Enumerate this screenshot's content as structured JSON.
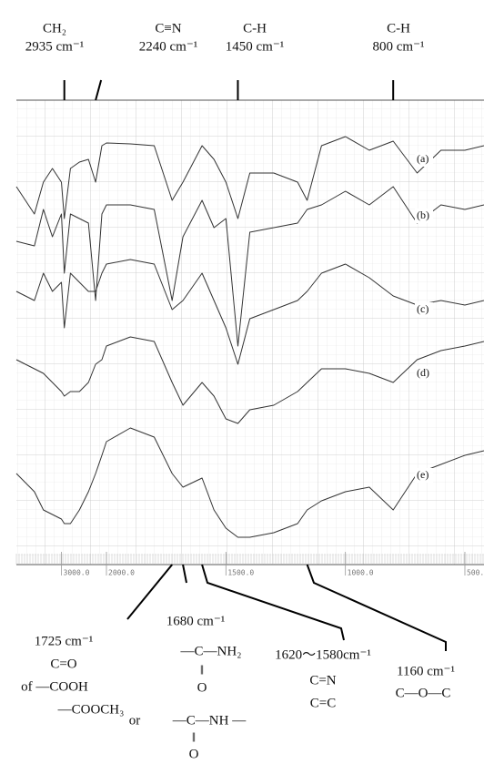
{
  "chart_data": {
    "type": "line",
    "x": [
      4000,
      3600,
      3400,
      3200,
      3000,
      2935,
      2800,
      2600,
      2400,
      2240,
      2100,
      2000,
      1900,
      1800,
      1725,
      1680,
      1600,
      1550,
      1500,
      1450,
      1400,
      1300,
      1200,
      1160,
      1100,
      1000,
      900,
      800,
      700,
      600,
      500,
      420
    ],
    "xlim": [
      4000,
      420
    ],
    "x_scale_change": 2000,
    "xticks": [
      {
        "value": 3000,
        "label": "3000.0"
      },
      {
        "value": 2000,
        "label": "2000.0"
      },
      {
        "value": 1500,
        "label": "1500.0"
      },
      {
        "value": 1000,
        "label": "1000.0"
      },
      {
        "value": 500,
        "label": "500."
      }
    ],
    "ylim": [
      0,
      510
    ],
    "grid": true,
    "series": [
      {
        "name": "(a)",
        "color": "#333333",
        "values": [
          415,
          385,
          420,
          435,
          420,
          380,
          435,
          442,
          445,
          420,
          460,
          463,
          462,
          460,
          400,
          420,
          460,
          445,
          420,
          380,
          430,
          430,
          420,
          400,
          460,
          470,
          455,
          465,
          430,
          455,
          455,
          460
        ]
      },
      {
        "name": "(b)",
        "color": "#333333",
        "values": [
          355,
          350,
          390,
          360,
          385,
          320,
          385,
          380,
          375,
          290,
          385,
          395,
          395,
          390,
          290,
          360,
          400,
          370,
          380,
          240,
          365,
          370,
          375,
          390,
          395,
          410,
          395,
          415,
          375,
          395,
          390,
          395
        ]
      },
      {
        "name": "(c)",
        "color": "#333333",
        "values": [
          300,
          290,
          320,
          300,
          310,
          260,
          320,
          310,
          300,
          300,
          320,
          330,
          335,
          330,
          280,
          290,
          320,
          290,
          260,
          220,
          270,
          280,
          290,
          300,
          320,
          330,
          315,
          295,
          285,
          290,
          285,
          290
        ]
      },
      {
        "name": "(d)",
        "color": "#333333",
        "values": [
          225,
          215,
          210,
          200,
          190,
          185,
          190,
          190,
          200,
          220,
          225,
          240,
          250,
          245,
          200,
          175,
          200,
          185,
          160,
          155,
          170,
          175,
          190,
          200,
          215,
          215,
          210,
          200,
          225,
          235,
          240,
          245
        ]
      },
      {
        "name": "(e)",
        "color": "#333333",
        "values": [
          100,
          80,
          60,
          55,
          50,
          45,
          45,
          60,
          80,
          100,
          120,
          135,
          150,
          140,
          100,
          85,
          95,
          60,
          40,
          30,
          30,
          35,
          45,
          60,
          70,
          80,
          85,
          60,
          100,
          110,
          120,
          125
        ]
      }
    ],
    "top_annotations": [
      {
        "group": "CH₂",
        "band": "2935 cm⁻¹",
        "wavenumber": 2935
      },
      {
        "group": "C≡N",
        "band": "2240 cm⁻¹",
        "wavenumber": 2240
      },
      {
        "group": "C-H",
        "band": "1450 cm⁻¹",
        "wavenumber": 1450
      },
      {
        "group": "C-H",
        "band": "800 cm⁻¹",
        "wavenumber": 800
      }
    ],
    "bottom_annotations": [
      {
        "wavenumber": 1725,
        "lines": [
          "1725 cm⁻¹",
          "C=O",
          "of —COOH",
          "—COOCH₃",
          "or",
          "—C—NH —",
          "‖",
          "O"
        ]
      },
      {
        "wavenumber": 1680,
        "lines": [
          "1680 cm⁻¹",
          "—C—NH₂",
          "‖",
          "O"
        ]
      },
      {
        "wavenumber_range": [
          1620,
          1580
        ],
        "lines": [
          "1620～1580cm⁻¹",
          "C=N",
          "C=C"
        ]
      },
      {
        "wavenumber": 1160,
        "lines": [
          "1160 cm⁻¹",
          "C—O—C"
        ]
      }
    ]
  }
}
